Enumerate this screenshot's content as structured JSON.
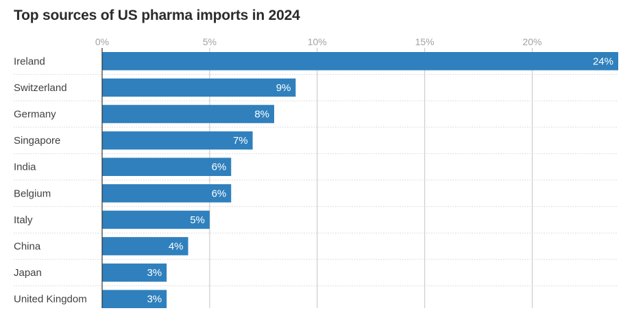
{
  "chart_data": {
    "type": "bar",
    "orientation": "horizontal",
    "title": "Top sources of US pharma imports in 2024",
    "xlabel": "",
    "ylabel": "",
    "categories": [
      "Ireland",
      "Switzerland",
      "Germany",
      "Singapore",
      "India",
      "Belgium",
      "Italy",
      "China",
      "Japan",
      "United Kingdom"
    ],
    "values": [
      24,
      9,
      8,
      7,
      6,
      6,
      5,
      4,
      3,
      3
    ],
    "value_labels": [
      "24%",
      "9%",
      "8%",
      "7%",
      "6%",
      "6%",
      "5%",
      "4%",
      "3%",
      "3%"
    ],
    "xlim": [
      0,
      24
    ],
    "x_ticks": [
      0,
      5,
      10,
      15,
      20
    ],
    "x_tick_labels": [
      "0%",
      "5%",
      "10%",
      "15%",
      "20%"
    ],
    "grid": true,
    "legend": "none",
    "bar_color": "#2f80bd",
    "grid_color": "#cccccc",
    "row_separator_color": "#d4d4d4"
  }
}
